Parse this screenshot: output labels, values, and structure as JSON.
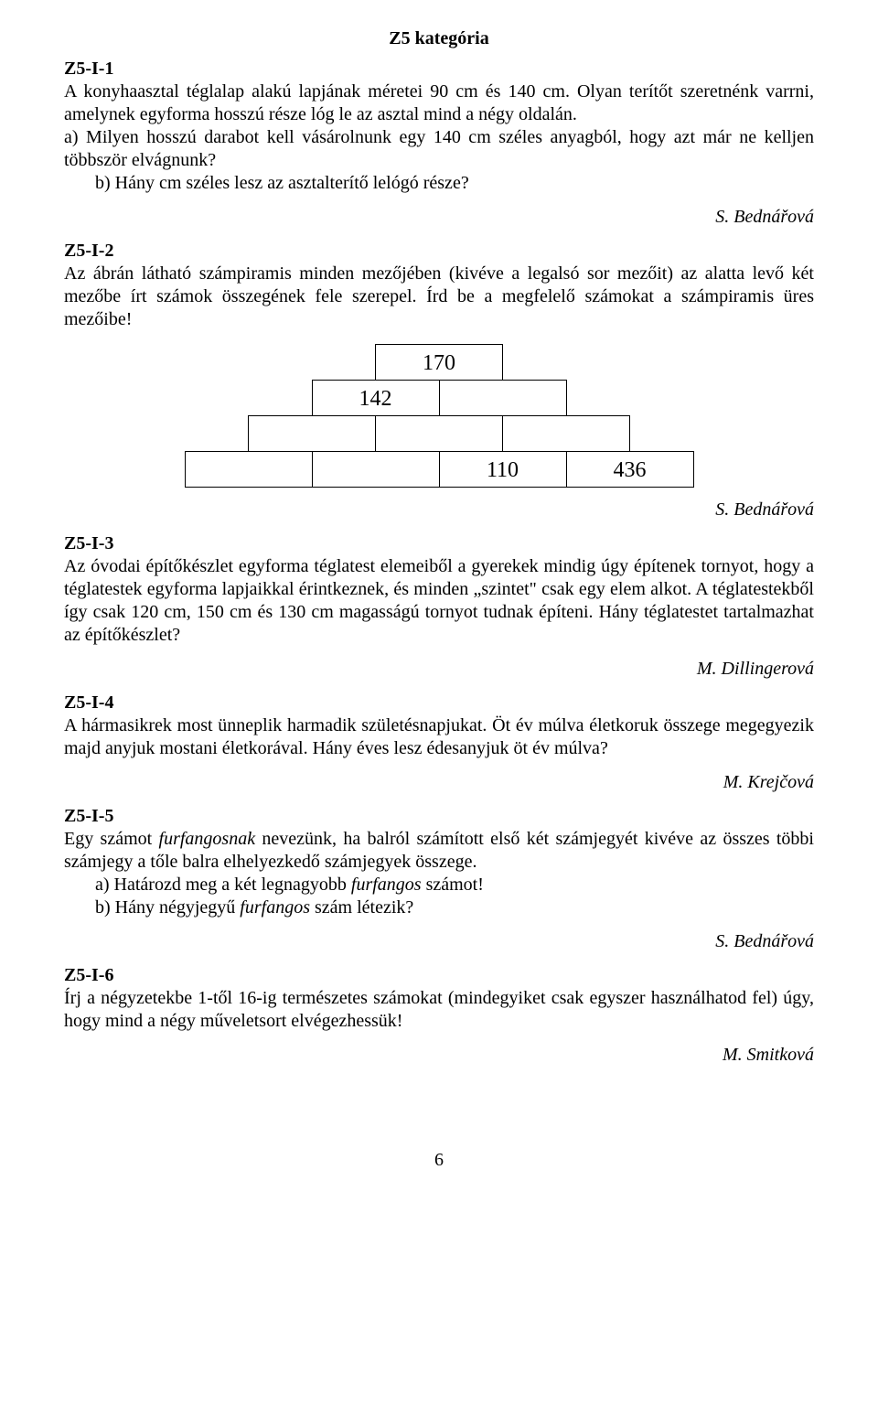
{
  "category_title": "Z5 kategória",
  "p1": {
    "id": "Z5-I-1",
    "text1": "A konyhaasztal téglalap alakú lapjának méretei 90 cm és 140 cm. Olyan terítőt szeretnénk varrni, amelynek egyforma hosszú része lóg le az asztal mind a négy oldalán.",
    "text2": "a) Milyen hosszú darabot kell vásárolnunk egy 140 cm széles anyagból, hogy azt már ne kelljen többször elvágnunk?",
    "text3": "b)  Hány cm széles lesz az asztalterítő lelógó része?",
    "author": "S. Bednářová"
  },
  "p2": {
    "id": "Z5-I-2",
    "text": "Az ábrán látható számpiramis minden mezőjében (kivéve a legalsó sor mezőit) az alatta levő két mezőbe írt számok összegének fele szerepel. Írd be a megfelelő számokat a számpiramis üres mezőibe!",
    "pyramid": {
      "r1": [
        "170"
      ],
      "r2": [
        "142",
        ""
      ],
      "r3": [
        "",
        "",
        ""
      ],
      "r4": [
        "",
        "",
        "110",
        "436"
      ]
    },
    "author": "S. Bednářová"
  },
  "p3": {
    "id": "Z5-I-3",
    "text": "Az óvodai építőkészlet egyforma téglatest elemeiből a gyerekek mindig úgy építenek tornyot, hogy a téglatestek egyforma lapjaikkal érintkeznek, és minden „szintet\" csak egy elem alkot. A téglatestekből így csak 120 cm, 150 cm és 130 cm magasságú tornyot tudnak építeni. Hány téglatestet tartalmazhat az építőkészlet?",
    "author": "M. Dillingerová"
  },
  "p4": {
    "id": "Z5-I-4",
    "text": "A hármasikrek most ünneplik harmadik születésnapjukat. Öt év múlva életkoruk összege megegyezik majd anyjuk mostani életkorával.  Hány éves lesz édesanyjuk öt év múlva?",
    "author": "M. Krejčová"
  },
  "p5": {
    "id": "Z5-I-5",
    "lead1": "Egy számot ",
    "em1": "furfangosnak",
    "lead2": " nevezünk, ha balról számított első két számjegyét kivéve az összes többi számjegy a tőle balra elhelyezkedő számjegyek összege.",
    "a_lead": "a)  Határozd meg a két legnagyobb ",
    "a_em": "furfangos",
    "a_tail": " számot!",
    "b_lead": "b)  Hány négyjegyű ",
    "b_em": "furfangos",
    "b_tail": " szám létezik?",
    "author": "S. Bednářová"
  },
  "p6": {
    "id": "Z5-I-6",
    "text": "Írj a négyzetekbe 1-től 16-ig természetes számokat (mindegyiket csak egyszer használhatod fel) úgy, hogy mind a négy műveletsort elvégezhessük!",
    "author": "M. Smitková"
  },
  "page_number": "6"
}
